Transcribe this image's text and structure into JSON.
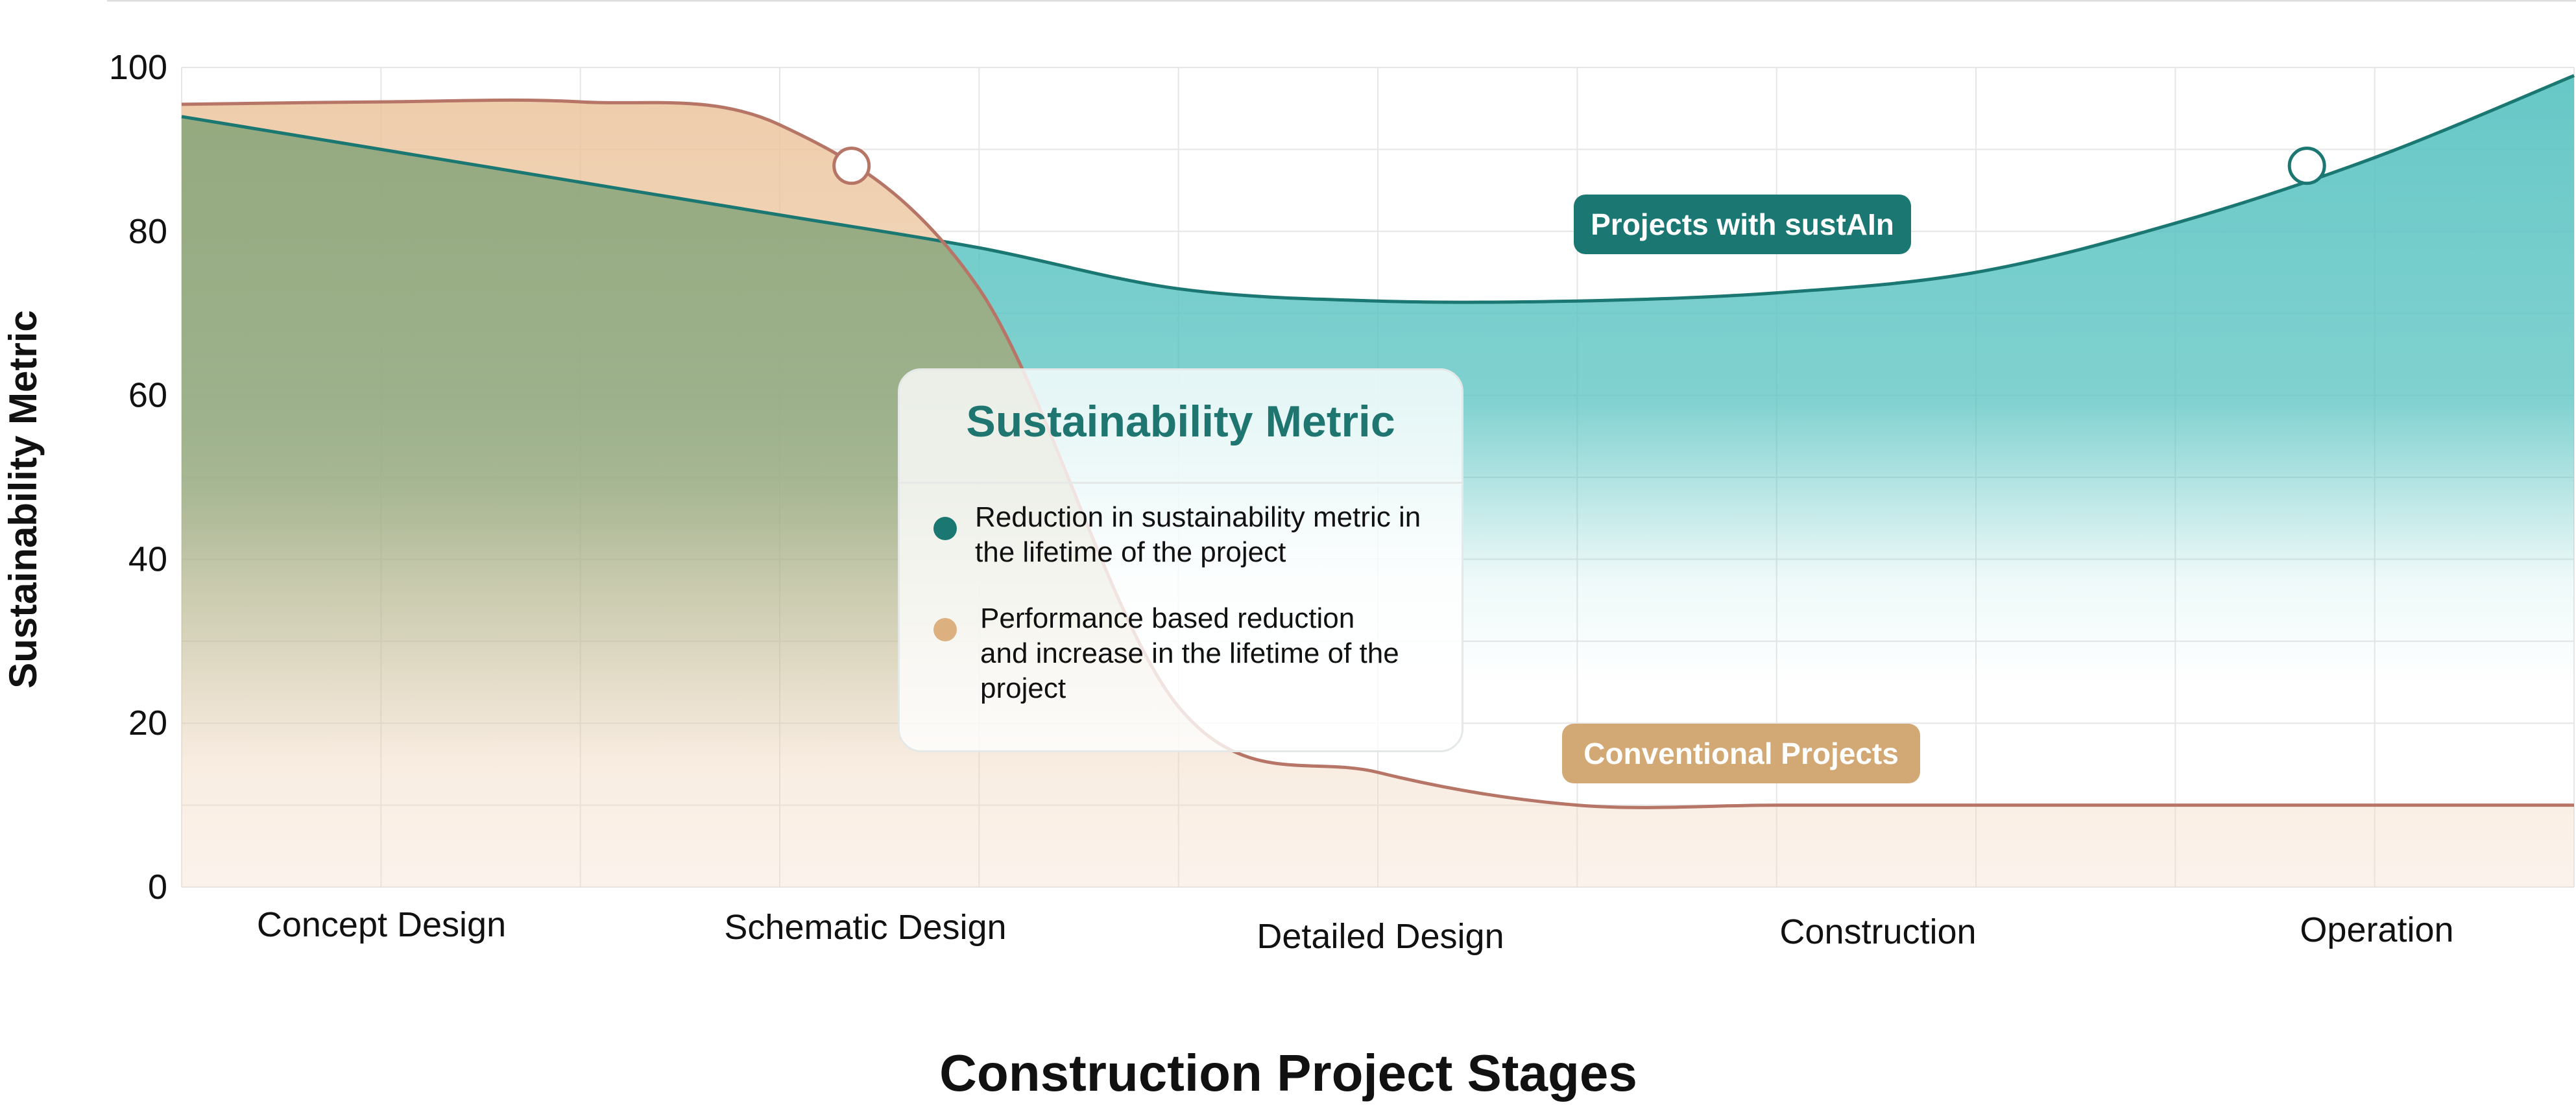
{
  "chart_data": {
    "type": "area",
    "title": "",
    "xlabel": "Construction Project Stages",
    "ylabel": "Sustainability Metric",
    "ylim": [
      0,
      100
    ],
    "y_ticks": [
      0,
      20,
      40,
      60,
      80,
      100
    ],
    "categories": [
      "Concept Design",
      "Schematic Design",
      "Detailed Design",
      "Construction",
      "Operation"
    ],
    "grid": true,
    "series": [
      {
        "name": "Projects with sustAIn",
        "color": "#1b7772",
        "x": [
          0,
          0.5,
          1,
          1.5,
          2,
          2.5,
          3,
          3.5,
          4,
          4.5,
          5,
          5.5,
          6
        ],
        "y": [
          94,
          90,
          86,
          82,
          78,
          73,
          71.5,
          71.5,
          72.5,
          75,
          81,
          89,
          99
        ]
      },
      {
        "name": "Conventional Projects",
        "color": "#b67566",
        "x": [
          0,
          0.5,
          1,
          1.5,
          2,
          2.5,
          3,
          3.5,
          4,
          4.5,
          5,
          5.5,
          6
        ],
        "y": [
          95.5,
          95.8,
          95.8,
          93,
          73,
          22,
          14,
          10,
          10,
          10,
          10,
          10,
          10
        ]
      }
    ],
    "markers": [
      {
        "series": "Conventional Projects",
        "x": 1.68,
        "y": 88
      },
      {
        "series": "Projects with sustAIn",
        "x": 5.33,
        "y": 88
      }
    ],
    "annotations": [
      {
        "text": "Projects with sustAIn",
        "x": 4.1,
        "y": 81,
        "color": "#1b7772"
      },
      {
        "text": "Conventional Projects",
        "x": 4.1,
        "y": 16.5,
        "color": "#d2a874"
      }
    ],
    "legend": {
      "placement": "center",
      "title": "Sustainability Metric",
      "items": [
        {
          "color": "#1b7772",
          "text": "Reduction in sustainability metric in the lifetime of the project"
        },
        {
          "color": "#dcb07f",
          "text": "Performance based reduction and increase in the lifetime of the project"
        }
      ]
    }
  }
}
